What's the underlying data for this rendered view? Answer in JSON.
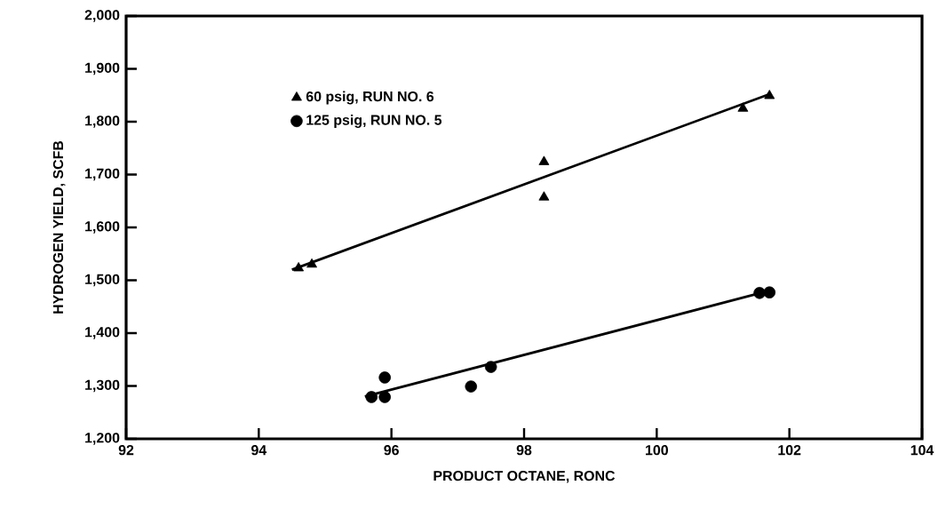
{
  "chart_data": {
    "type": "scatter",
    "xlabel": "PRODUCT OCTANE, RONC",
    "ylabel": "HYDROGEN YIELD, SCFB",
    "xlim": [
      92,
      104
    ],
    "xticks": [
      92,
      94,
      96,
      98,
      100,
      102,
      104
    ],
    "ylim": [
      1200,
      2000
    ],
    "yticks": [
      {
        "value": 1200,
        "label": "1,200"
      },
      {
        "value": 1300,
        "label": "1,300"
      },
      {
        "value": 1400,
        "label": "1,400"
      },
      {
        "value": 1500,
        "label": "1,500"
      },
      {
        "value": 1600,
        "label": "1,600"
      },
      {
        "value": 1700,
        "label": "1,700"
      },
      {
        "value": 1800,
        "label": "1,800"
      },
      {
        "value": 1900,
        "label": "1,900"
      },
      {
        "value": 2000,
        "label": "2,000"
      }
    ],
    "grid": false,
    "legend": "top left",
    "series": [
      {
        "name": "60 psig, RUN NO. 6",
        "marker": "triangle",
        "color": "#000000",
        "x": [
          94.6,
          94.8,
          98.3,
          98.3,
          101.3,
          101.7
        ],
        "values": [
          1523,
          1530,
          1724,
          1657,
          1825,
          1849
        ]
      },
      {
        "name": "125 psig, RUN NO. 5",
        "marker": "circle",
        "color": "#000000",
        "x": [
          95.7,
          95.9,
          95.9,
          97.2,
          97.5,
          101.55,
          101.7
        ],
        "values": [
          1279,
          1279,
          1316,
          1299,
          1336,
          1476,
          1477
        ]
      },
      {
        "type": "line",
        "marker": "none",
        "color": "#000000",
        "x": [
          94.5,
          101.7
        ],
        "values": [
          1520,
          1852
        ]
      },
      {
        "type": "line",
        "marker": "none",
        "color": "#000000",
        "x": [
          95.6,
          101.6
        ],
        "values": [
          1280,
          1477
        ]
      }
    ]
  }
}
